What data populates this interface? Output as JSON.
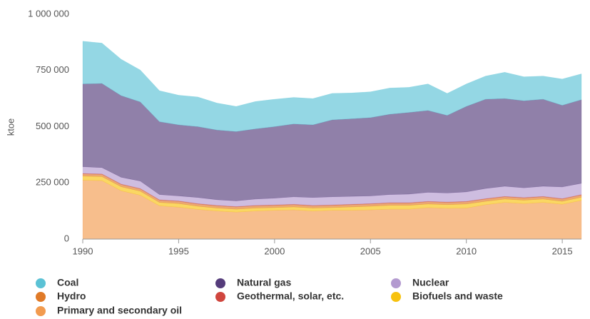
{
  "chart_data": {
    "type": "stacked_area",
    "y_axis_label": "ktoe",
    "x": [
      1990,
      1991,
      1992,
      1993,
      1994,
      1995,
      1996,
      1997,
      1998,
      1999,
      2000,
      2001,
      2002,
      2003,
      2004,
      2005,
      2006,
      2007,
      2008,
      2009,
      2010,
      2011,
      2012,
      2013,
      2014,
      2015,
      2016
    ],
    "xlim": [
      1990,
      2016
    ],
    "xticks": [
      1990,
      1995,
      2000,
      2005,
      2010,
      2015
    ],
    "ylim": [
      0,
      1000000
    ],
    "yticks": [
      0,
      {
        "value": 250000,
        "label": "250 000"
      },
      {
        "value": 500000,
        "label": "500 000"
      },
      {
        "value": 750000,
        "label": "750 000"
      },
      {
        "value": 1000000,
        "label": "1 000 000"
      }
    ],
    "grid": false,
    "series": [
      {
        "name": "Coal",
        "color": "#5bc2d5",
        "values": [
          190000,
          180000,
          162000,
          142000,
          138000,
          132000,
          132000,
          120000,
          112000,
          122000,
          122000,
          118000,
          117000,
          118000,
          115000,
          115000,
          117000,
          112000,
          118000,
          98000,
          100000,
          103000,
          117000,
          107000,
          103000,
          117000,
          115000
        ]
      },
      {
        "name": "Natural gas",
        "color": "#553c7b",
        "values": [
          368000,
          374000,
          363000,
          352000,
          324000,
          316000,
          315000,
          310000,
          308000,
          312000,
          318000,
          324000,
          323000,
          342000,
          345000,
          348000,
          357000,
          363000,
          364000,
          345000,
          380000,
          397000,
          390000,
          387000,
          387000,
          363000,
          372000
        ]
      },
      {
        "name": "Nuclear",
        "color": "#b39ad0",
        "values": [
          30000,
          28000,
          30000,
          33000,
          23000,
          22000,
          27000,
          25000,
          25000,
          28000,
          30000,
          33000,
          35000,
          36000,
          35000,
          34000,
          36000,
          38000,
          40000,
          40000,
          42000,
          45000,
          45000,
          43000,
          45000,
          52000,
          50000
        ]
      },
      {
        "name": "Hydro",
        "color": "#e07a28",
        "values": [
          10000,
          10000,
          10000,
          10000,
          10000,
          10000,
          10000,
          10000,
          10000,
          10000,
          10000,
          10000,
          10000,
          10000,
          10000,
          10000,
          10000,
          10000,
          10000,
          10000,
          10000,
          10000,
          10000,
          10000,
          10000,
          10000,
          10000
        ]
      },
      {
        "name": "Geothermal, solar, etc.",
        "color": "#d0463e",
        "values": [
          2000,
          2000,
          2000,
          2000,
          2000,
          2000,
          2000,
          2000,
          2000,
          2000,
          2000,
          2000,
          2000,
          2000,
          2000,
          2000,
          2000,
          2000,
          2000,
          2000,
          2000,
          2000,
          2000,
          2000,
          2000,
          2000,
          2000
        ]
      },
      {
        "name": "Biofuels and waste",
        "color": "#f7c20f",
        "values": [
          18000,
          18000,
          18000,
          18000,
          15000,
          16000,
          14000,
          13000,
          13000,
          13000,
          12000,
          13000,
          13000,
          12000,
          15000,
          16000,
          17000,
          17000,
          16000,
          16000,
          18000,
          15000,
          15000,
          15000,
          15000,
          13000,
          14000
        ]
      },
      {
        "name": "Primary and secondary oil",
        "color": "#f29b4f",
        "values": [
          262000,
          260000,
          215000,
          195000,
          148000,
          142000,
          132000,
          125000,
          120000,
          125000,
          128000,
          130000,
          125000,
          128000,
          128000,
          130000,
          133000,
          133000,
          140000,
          137000,
          138000,
          153000,
          163000,
          158000,
          163000,
          155000,
          172000
        ]
      }
    ]
  }
}
